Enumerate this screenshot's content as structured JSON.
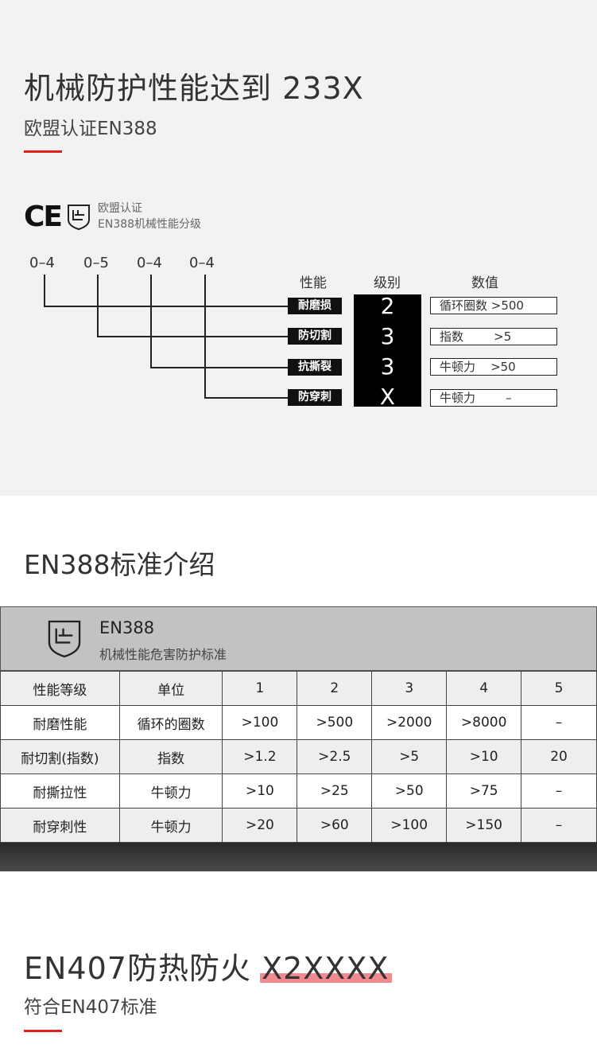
{
  "section1": {
    "title": "机械防护性能达到",
    "highlight": "233X",
    "subtitle": "欧盟认证EN388",
    "logo_text": [
      "欧盟认证",
      "EN388机械性能分级"
    ],
    "ranges": [
      "0–4",
      "0–5",
      "0–4",
      "0–4"
    ],
    "headers": [
      "性能",
      "级别",
      "数值"
    ],
    "rows": [
      {
        "label": "耐磨损",
        "grade": "2",
        "value": "循环圈数 >500"
      },
      {
        "label": "防切割",
        "grade": "3",
        "value": "指数        >5"
      },
      {
        "label": "抗撕裂",
        "grade": "3",
        "value": "牛顿力    >50"
      },
      {
        "label": "防穿刺",
        "grade": "X",
        "value": "牛顿力        –"
      }
    ]
  },
  "section2": {
    "title": "EN388标准介绍",
    "table_title": "EN388",
    "table_subtitle": "机械性能危害防护标准",
    "columns": [
      "性能等级",
      "单位",
      "1",
      "2",
      "3",
      "4",
      "5"
    ],
    "rows": [
      [
        "耐磨性能",
        "循环的圈数",
        ">100",
        ">500",
        ">2000",
        ">8000",
        "–"
      ],
      [
        "耐切割(指数)",
        "指数",
        ">1.2",
        ">2.5",
        ">5",
        ">10",
        "20"
      ],
      [
        "耐撕拉性",
        "牛顿力",
        ">10",
        ">25",
        ">50",
        ">75",
        "–"
      ],
      [
        "耐穿刺性",
        "牛顿力",
        ">20",
        ">60",
        ">100",
        ">150",
        "–"
      ]
    ]
  },
  "section3": {
    "title": "EN407防热防火",
    "highlight": "X2XXXX",
    "subtitle": "符合EN407标准"
  },
  "colors": {
    "accent": "#e0201c",
    "highlight": "#f08a8e"
  }
}
